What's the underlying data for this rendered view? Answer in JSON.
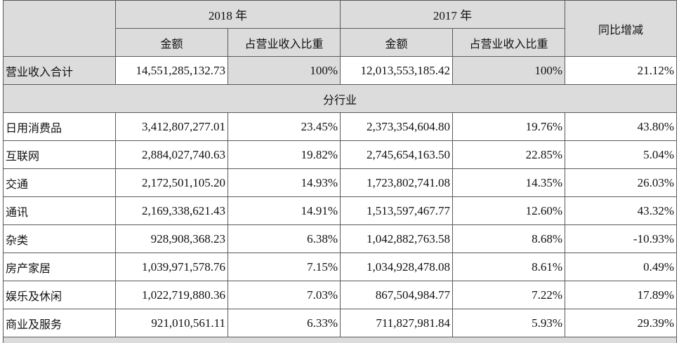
{
  "header": {
    "year_2018": "2018 年",
    "year_2017": "2017 年",
    "yoy": "同比增减",
    "amount": "金额",
    "ratio": "占营业收入比重"
  },
  "total": {
    "label": "营业收入合计",
    "amount_2018": "14,551,285,132.73",
    "ratio_2018": "100%",
    "amount_2017": "12,013,553,185.42",
    "ratio_2017": "100%",
    "yoy": "21.12%"
  },
  "section_title": "分行业",
  "rows": [
    {
      "label": "日用消费品",
      "amount_2018": "3,412,807,277.01",
      "ratio_2018": "23.45%",
      "amount_2017": "2,373,354,604.80",
      "ratio_2017": "19.76%",
      "yoy": "43.80%"
    },
    {
      "label": "互联网",
      "amount_2018": "2,884,027,740.63",
      "ratio_2018": "19.82%",
      "amount_2017": "2,745,654,163.50",
      "ratio_2017": "22.85%",
      "yoy": "5.04%"
    },
    {
      "label": "交通",
      "amount_2018": "2,172,501,105.20",
      "ratio_2018": "14.93%",
      "amount_2017": "1,723,802,741.08",
      "ratio_2017": "14.35%",
      "yoy": "26.03%"
    },
    {
      "label": "通讯",
      "amount_2018": "2,169,338,621.43",
      "ratio_2018": "14.91%",
      "amount_2017": "1,513,597,467.77",
      "ratio_2017": "12.60%",
      "yoy": "43.32%"
    },
    {
      "label": "杂类",
      "amount_2018": "928,908,368.23",
      "ratio_2018": "6.38%",
      "amount_2017": "1,042,882,763.58",
      "ratio_2017": "8.68%",
      "yoy": "-10.93%"
    },
    {
      "label": "房产家居",
      "amount_2018": "1,039,971,578.76",
      "ratio_2018": "7.15%",
      "amount_2017": "1,034,928,478.08",
      "ratio_2017": "8.61%",
      "yoy": "0.49%"
    },
    {
      "label": "娱乐及休闲",
      "amount_2018": "1,022,719,880.36",
      "ratio_2018": "7.03%",
      "amount_2017": "867,504,984.77",
      "ratio_2017": "7.22%",
      "yoy": "17.89%"
    },
    {
      "label": "商业及服务",
      "amount_2018": "921,010,561.11",
      "ratio_2018": "6.33%",
      "amount_2017": "711,827,981.84",
      "ratio_2017": "5.93%",
      "yoy": "29.39%"
    }
  ]
}
